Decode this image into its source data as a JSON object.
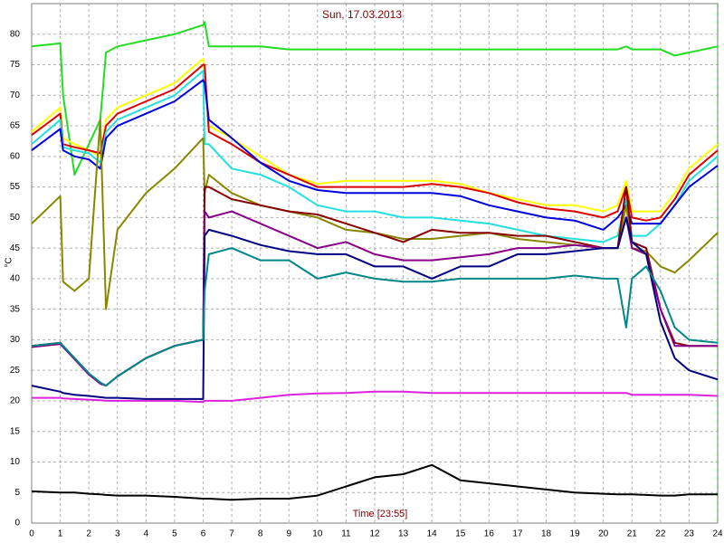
{
  "chart_data": {
    "type": "line",
    "title": "Sun, 17.03.2013",
    "x_label": "Time [23:55]",
    "y_label": "°C",
    "x": [
      0,
      1,
      1.1,
      1.5,
      2,
      2.4,
      2.6,
      3,
      4,
      5,
      6,
      6.05,
      6.2,
      7,
      8,
      9,
      10,
      11,
      12,
      13,
      14,
      15,
      16,
      17,
      18,
      19,
      20,
      20.5,
      20.8,
      21,
      21.5,
      22,
      22.5,
      23,
      24
    ],
    "xlim": [
      0,
      24
    ],
    "xticks": [
      0,
      1,
      2,
      3,
      4,
      5,
      6,
      7,
      8,
      9,
      10,
      11,
      12,
      13,
      14,
      15,
      16,
      17,
      18,
      19,
      20,
      21,
      22,
      23,
      24
    ],
    "ylim": [
      0,
      85
    ],
    "yticks": [
      0,
      5,
      10,
      15,
      20,
      25,
      30,
      35,
      40,
      45,
      50,
      55,
      60,
      65,
      70,
      75,
      80
    ],
    "grid": true,
    "series": [
      {
        "color": "#22dd22",
        "values": [
          78,
          78.5,
          70,
          57,
          62,
          66,
          77,
          78,
          79,
          80,
          81.5,
          82,
          78,
          78,
          78,
          77.5,
          77.5,
          77.5,
          77.5,
          77.5,
          77.5,
          77.5,
          77.5,
          77.5,
          77.5,
          77.5,
          77.5,
          77.5,
          78,
          77.5,
          77.5,
          77.5,
          76.5,
          77,
          78
        ]
      },
      {
        "color": "#ffff00",
        "values": [
          64,
          68,
          63,
          62,
          61,
          60,
          66,
          68,
          70,
          72,
          76,
          73,
          65,
          63,
          60,
          57,
          55.5,
          56,
          56,
          56,
          56,
          55.5,
          54,
          53,
          52,
          52,
          51,
          52,
          56,
          51,
          51,
          51,
          54,
          58,
          62
        ]
      },
      {
        "color": "#dd0000",
        "values": [
          63.5,
          67,
          62,
          61.5,
          61,
          60.5,
          65,
          67,
          69,
          71,
          75,
          75,
          64,
          62,
          59,
          57,
          55,
          55,
          55,
          55,
          55.5,
          55,
          54,
          52.5,
          51.5,
          51,
          50,
          51,
          55,
          50,
          49.5,
          50,
          53,
          57,
          61
        ]
      },
      {
        "color": "#22e0e0",
        "values": [
          62,
          66,
          61.5,
          61,
          60.5,
          59,
          64,
          66,
          68,
          70,
          74,
          62,
          62,
          58,
          57,
          55,
          52,
          51,
          51,
          50,
          50,
          49.5,
          49,
          48,
          47,
          46.5,
          46,
          47,
          53,
          47,
          47,
          49,
          52,
          56,
          60
        ]
      },
      {
        "color": "#0000dd",
        "values": [
          61,
          64.5,
          61,
          60,
          59.5,
          58,
          63,
          65,
          67,
          69,
          72.5,
          72,
          66,
          63,
          59,
          56,
          54.5,
          54,
          54,
          54,
          54,
          53.5,
          52,
          51,
          50,
          49.5,
          48,
          50,
          52,
          49,
          49,
          49,
          52,
          55,
          58.5
        ]
      },
      {
        "color": "#888800",
        "values": [
          49,
          53.5,
          39.5,
          38,
          40,
          66,
          35,
          48,
          54,
          58,
          63,
          54,
          57,
          54,
          52,
          51,
          50,
          48,
          47.5,
          46.5,
          46.5,
          47,
          47.5,
          46.5,
          46,
          45.5,
          45,
          45,
          52,
          45,
          44.5,
          42,
          41,
          43,
          47.5
        ]
      },
      {
        "color": "#880000",
        "values": [
          29,
          29.5,
          29,
          27,
          24.5,
          23,
          22.5,
          24,
          27,
          29,
          30,
          55,
          55,
          53,
          52,
          51,
          50.5,
          49,
          47.5,
          46,
          48,
          47.5,
          47.5,
          47,
          47,
          46,
          45,
          45,
          55,
          46,
          45,
          35,
          29.5,
          29,
          29
        ]
      },
      {
        "color": "#880088",
        "values": [
          28.8,
          29.3,
          28.8,
          26.8,
          24.3,
          22.8,
          22.5,
          24,
          27,
          29,
          30,
          51,
          50,
          51,
          49,
          47,
          45,
          46,
          44,
          43,
          43,
          43.5,
          44,
          45,
          45,
          45.5,
          45,
          45,
          50,
          45,
          44,
          35,
          29,
          29,
          29
        ]
      },
      {
        "color": "#000080",
        "values": [
          22.5,
          21.5,
          21.3,
          21,
          20.8,
          20.6,
          20.5,
          20.5,
          20.3,
          20.3,
          20.3,
          47,
          48,
          47,
          45.5,
          44.5,
          44,
          44,
          42,
          42,
          40,
          42,
          42,
          44,
          44,
          44.5,
          45,
          45,
          50,
          46,
          44,
          33,
          27,
          25,
          23.5
        ]
      },
      {
        "color": "#008888",
        "values": [
          29,
          29.5,
          29,
          27,
          24.5,
          23,
          22.5,
          24,
          27,
          29,
          30,
          38,
          44,
          45,
          43,
          43,
          40,
          41,
          40,
          39.5,
          39.5,
          40,
          40,
          40,
          40,
          40.5,
          40,
          40,
          32,
          40,
          42,
          38,
          32,
          30,
          29.5
        ]
      },
      {
        "color": "#dd22dd",
        "values": [
          20.5,
          20.5,
          20.4,
          20.3,
          20.2,
          20.1,
          20,
          20,
          20,
          20,
          19.8,
          20,
          20,
          20,
          20.5,
          21,
          21.2,
          21.3,
          21.5,
          21.5,
          21.3,
          21.3,
          21.3,
          21.3,
          21.3,
          21.3,
          21.3,
          21.3,
          21.3,
          21,
          21,
          21,
          21,
          21,
          20.8
        ]
      },
      {
        "color": "#000000",
        "values": [
          5.2,
          5,
          5,
          5,
          4.8,
          4.7,
          4.6,
          4.5,
          4.5,
          4.3,
          4,
          4,
          4,
          3.8,
          4,
          4,
          4.5,
          6,
          7.5,
          8,
          9.5,
          7,
          6.5,
          6,
          5.5,
          5,
          4.8,
          4.7,
          4.7,
          4.7,
          4.6,
          4.5,
          4.5,
          4.7,
          4.7
        ]
      }
    ]
  }
}
